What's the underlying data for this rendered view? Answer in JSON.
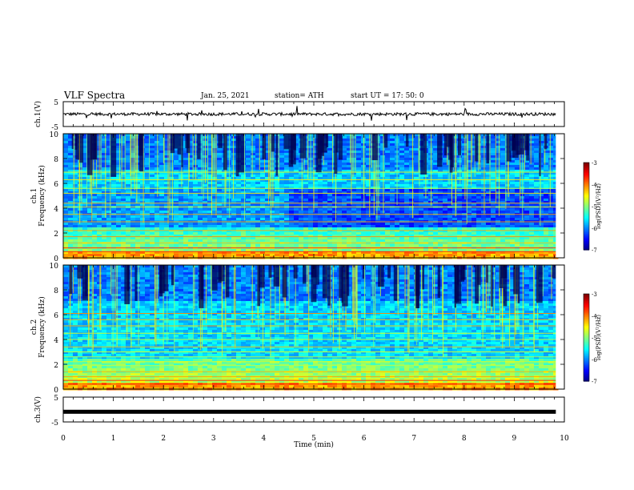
{
  "header": {
    "title": "VLF Spectra",
    "date": "Jan. 25, 2021",
    "station": "station= ATH",
    "start": "start  UT =   17: 50: 0"
  },
  "chart_data": [
    {
      "type": "line",
      "name": "channel-1-waveform",
      "ylabel": "ch.1(V)",
      "ylim": [
        -5,
        5
      ],
      "yticks": [
        "5",
        "-5"
      ],
      "xlim": [
        0,
        10
      ],
      "baseline": 0.0
    },
    {
      "type": "heatmap",
      "name": "channel-1-spectrogram",
      "ylabel": "ch.1\nFrequency (kHz)",
      "ylim": [
        0,
        10
      ],
      "yticks": [
        "0",
        "2",
        "4",
        "6",
        "8",
        "10"
      ],
      "xlim": [
        0,
        9.83
      ],
      "colorbar": {
        "label": "log(PSD)(V²/Hz)",
        "range": [
          -7,
          -3
        ],
        "ticks": [
          "-3",
          "-4",
          "-5",
          "-6",
          "-7"
        ]
      }
    },
    {
      "type": "heatmap",
      "name": "channel-2-spectrogram",
      "ylabel": "ch.2\nFrequency (kHz)",
      "ylim": [
        0,
        10
      ],
      "yticks": [
        "0",
        "2",
        "4",
        "6",
        "8",
        "10"
      ],
      "xlim": [
        0,
        9.83
      ],
      "colorbar": {
        "label": "log(PSD)(V²/Hz)",
        "range": [
          -7,
          -3
        ],
        "ticks": [
          "-3",
          "-4",
          "-5",
          "-6",
          "-7"
        ]
      }
    },
    {
      "type": "line",
      "name": "channel-3-waveform",
      "ylabel": "ch.3(V)",
      "ylim": [
        -5,
        5
      ],
      "yticks": [
        "5",
        "-5"
      ],
      "xlim": [
        0,
        10
      ],
      "baseline": -0.9
    }
  ],
  "xaxis": {
    "label": "Time (min)",
    "ticks": [
      "0",
      "1",
      "2",
      "3",
      "4",
      "5",
      "6",
      "7",
      "8",
      "9",
      "10"
    ]
  }
}
